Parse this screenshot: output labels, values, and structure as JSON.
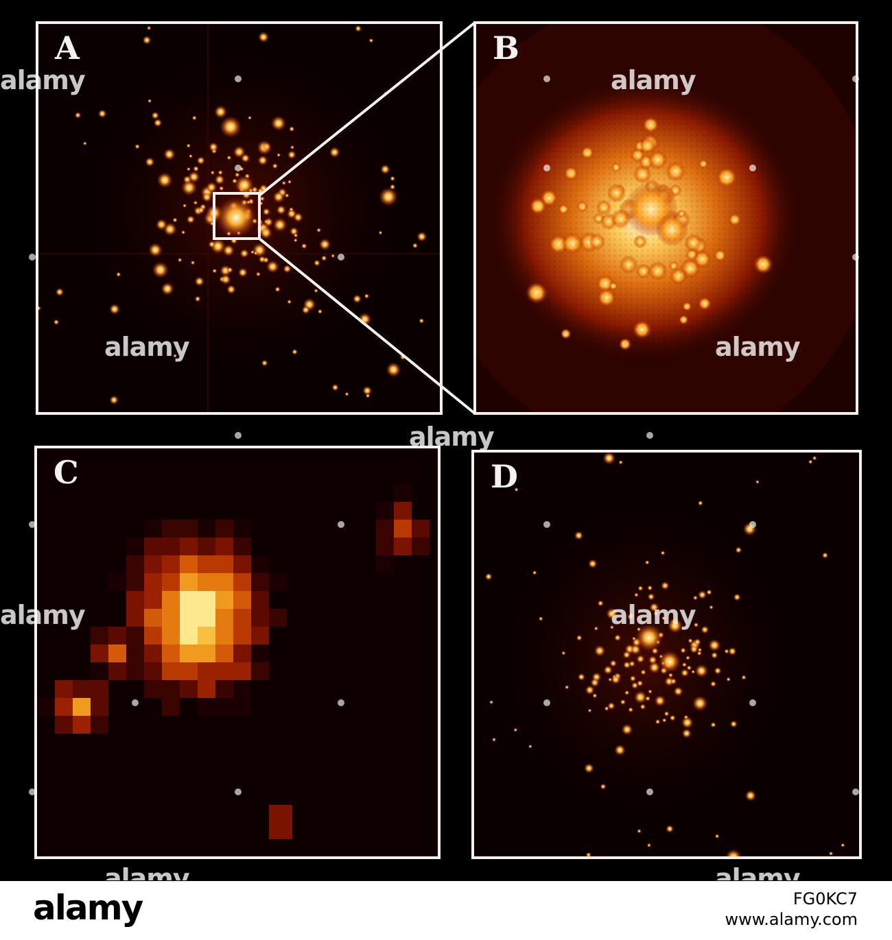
{
  "panels": [
    {
      "id": "a",
      "label": "A"
    },
    {
      "id": "b",
      "label": "B"
    },
    {
      "id": "c",
      "label": "C"
    },
    {
      "id": "d",
      "label": "D"
    }
  ],
  "watermark": {
    "text": "alamy"
  },
  "footer": {
    "logo": "alamy",
    "image_id": "FG0KC7",
    "url": "www.alamy.com"
  },
  "colors": {
    "background": "#000000",
    "frame": "#f4f2ee",
    "glow_core": "#fffbe6",
    "glow_mid": "#ffb030",
    "glow_outer": "#a01800",
    "footer_bg": "#ffffff"
  }
}
